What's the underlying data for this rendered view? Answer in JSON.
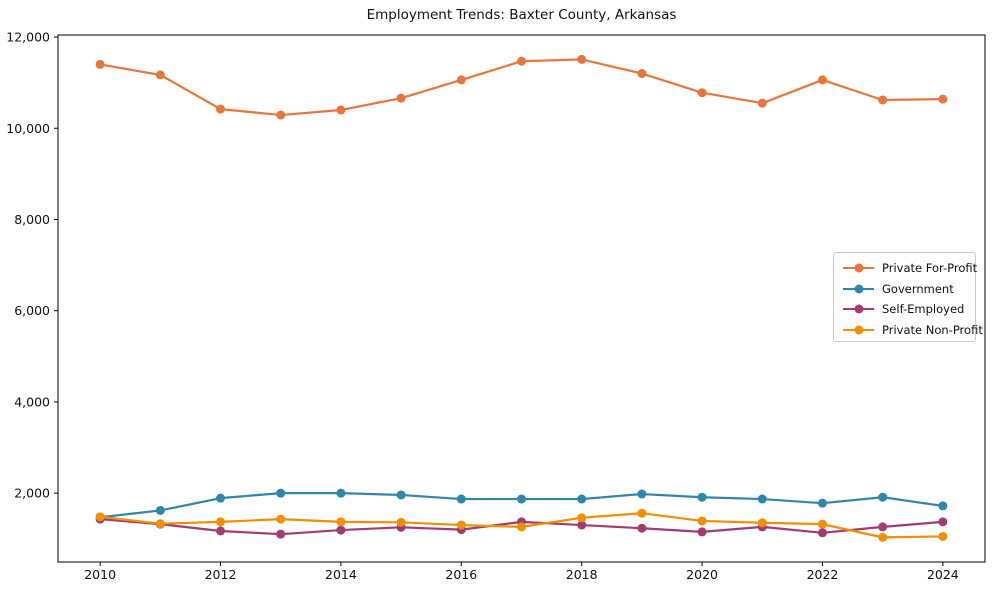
{
  "chart_data": {
    "type": "line",
    "title": "Employment Trends: Baxter County, Arkansas",
    "xlabel": "",
    "ylabel": "",
    "x": [
      2010,
      2011,
      2012,
      2013,
      2014,
      2015,
      2016,
      2017,
      2018,
      2019,
      2020,
      2021,
      2022,
      2023,
      2024
    ],
    "series": [
      {
        "name": "Private For-Profit",
        "color": "#e8763c",
        "values": [
          11400,
          11170,
          10420,
          10290,
          10400,
          10660,
          11060,
          11470,
          11510,
          11200,
          10780,
          10550,
          11060,
          10620,
          10640
        ]
      },
      {
        "name": "Government",
        "color": "#2e86ab",
        "values": [
          1470,
          1620,
          1890,
          2000,
          2000,
          1960,
          1870,
          1870,
          1870,
          1980,
          1910,
          1870,
          1780,
          1910,
          1720
        ]
      },
      {
        "name": "Self-Employed",
        "color": "#a23b72",
        "values": [
          1430,
          1320,
          1170,
          1100,
          1190,
          1250,
          1200,
          1370,
          1300,
          1230,
          1150,
          1260,
          1130,
          1260,
          1370
        ]
      },
      {
        "name": "Private Non-Profit",
        "color": "#f18f01",
        "values": [
          1480,
          1330,
          1370,
          1430,
          1370,
          1360,
          1300,
          1260,
          1460,
          1560,
          1390,
          1350,
          1320,
          1030,
          1050
        ]
      }
    ],
    "xticks": [
      2010,
      2012,
      2014,
      2016,
      2018,
      2020,
      2022,
      2024
    ],
    "yticks": [
      2000,
      4000,
      6000,
      8000,
      10000,
      12000
    ],
    "xlim": [
      2009.3,
      2024.7
    ],
    "ylim": [
      490,
      12045
    ],
    "grid": false,
    "legend_position": "center-right",
    "axis_color": "#000000",
    "background_color": "#ffffff"
  }
}
